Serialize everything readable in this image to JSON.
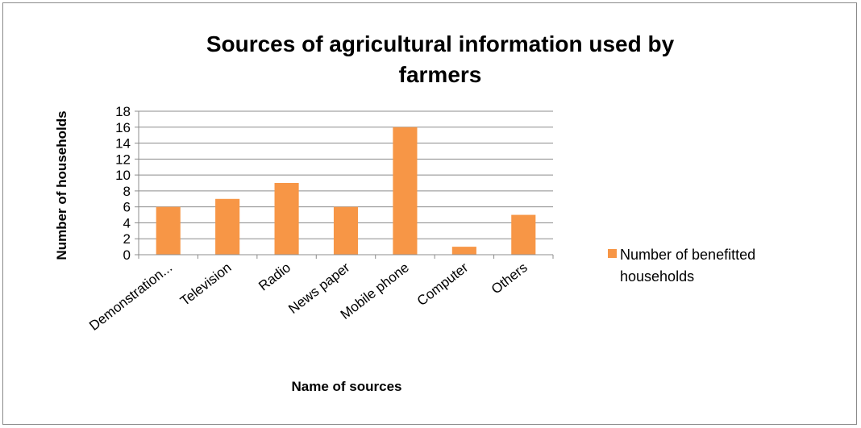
{
  "chart_data": {
    "type": "bar",
    "title_line1": "Sources of agricultural information used by",
    "title_line2": "farmers",
    "xlabel": "Name of sources",
    "ylabel": "Number of households",
    "categories": [
      "Demonstration...",
      "Television",
      "Radio",
      "News paper",
      "Mobile phone",
      "Computer",
      "Others"
    ],
    "series": [
      {
        "name": "Number of benefitted households",
        "legend_line1": "Number of benefitted",
        "legend_line2": "households",
        "values": [
          6,
          7,
          9,
          6,
          16,
          1,
          5
        ]
      }
    ],
    "ylim": [
      0,
      18
    ],
    "yticks": [
      0,
      2,
      4,
      6,
      8,
      10,
      12,
      14,
      16,
      18
    ],
    "grid": true,
    "legend_position": "right",
    "bar_color": "#f79646"
  }
}
